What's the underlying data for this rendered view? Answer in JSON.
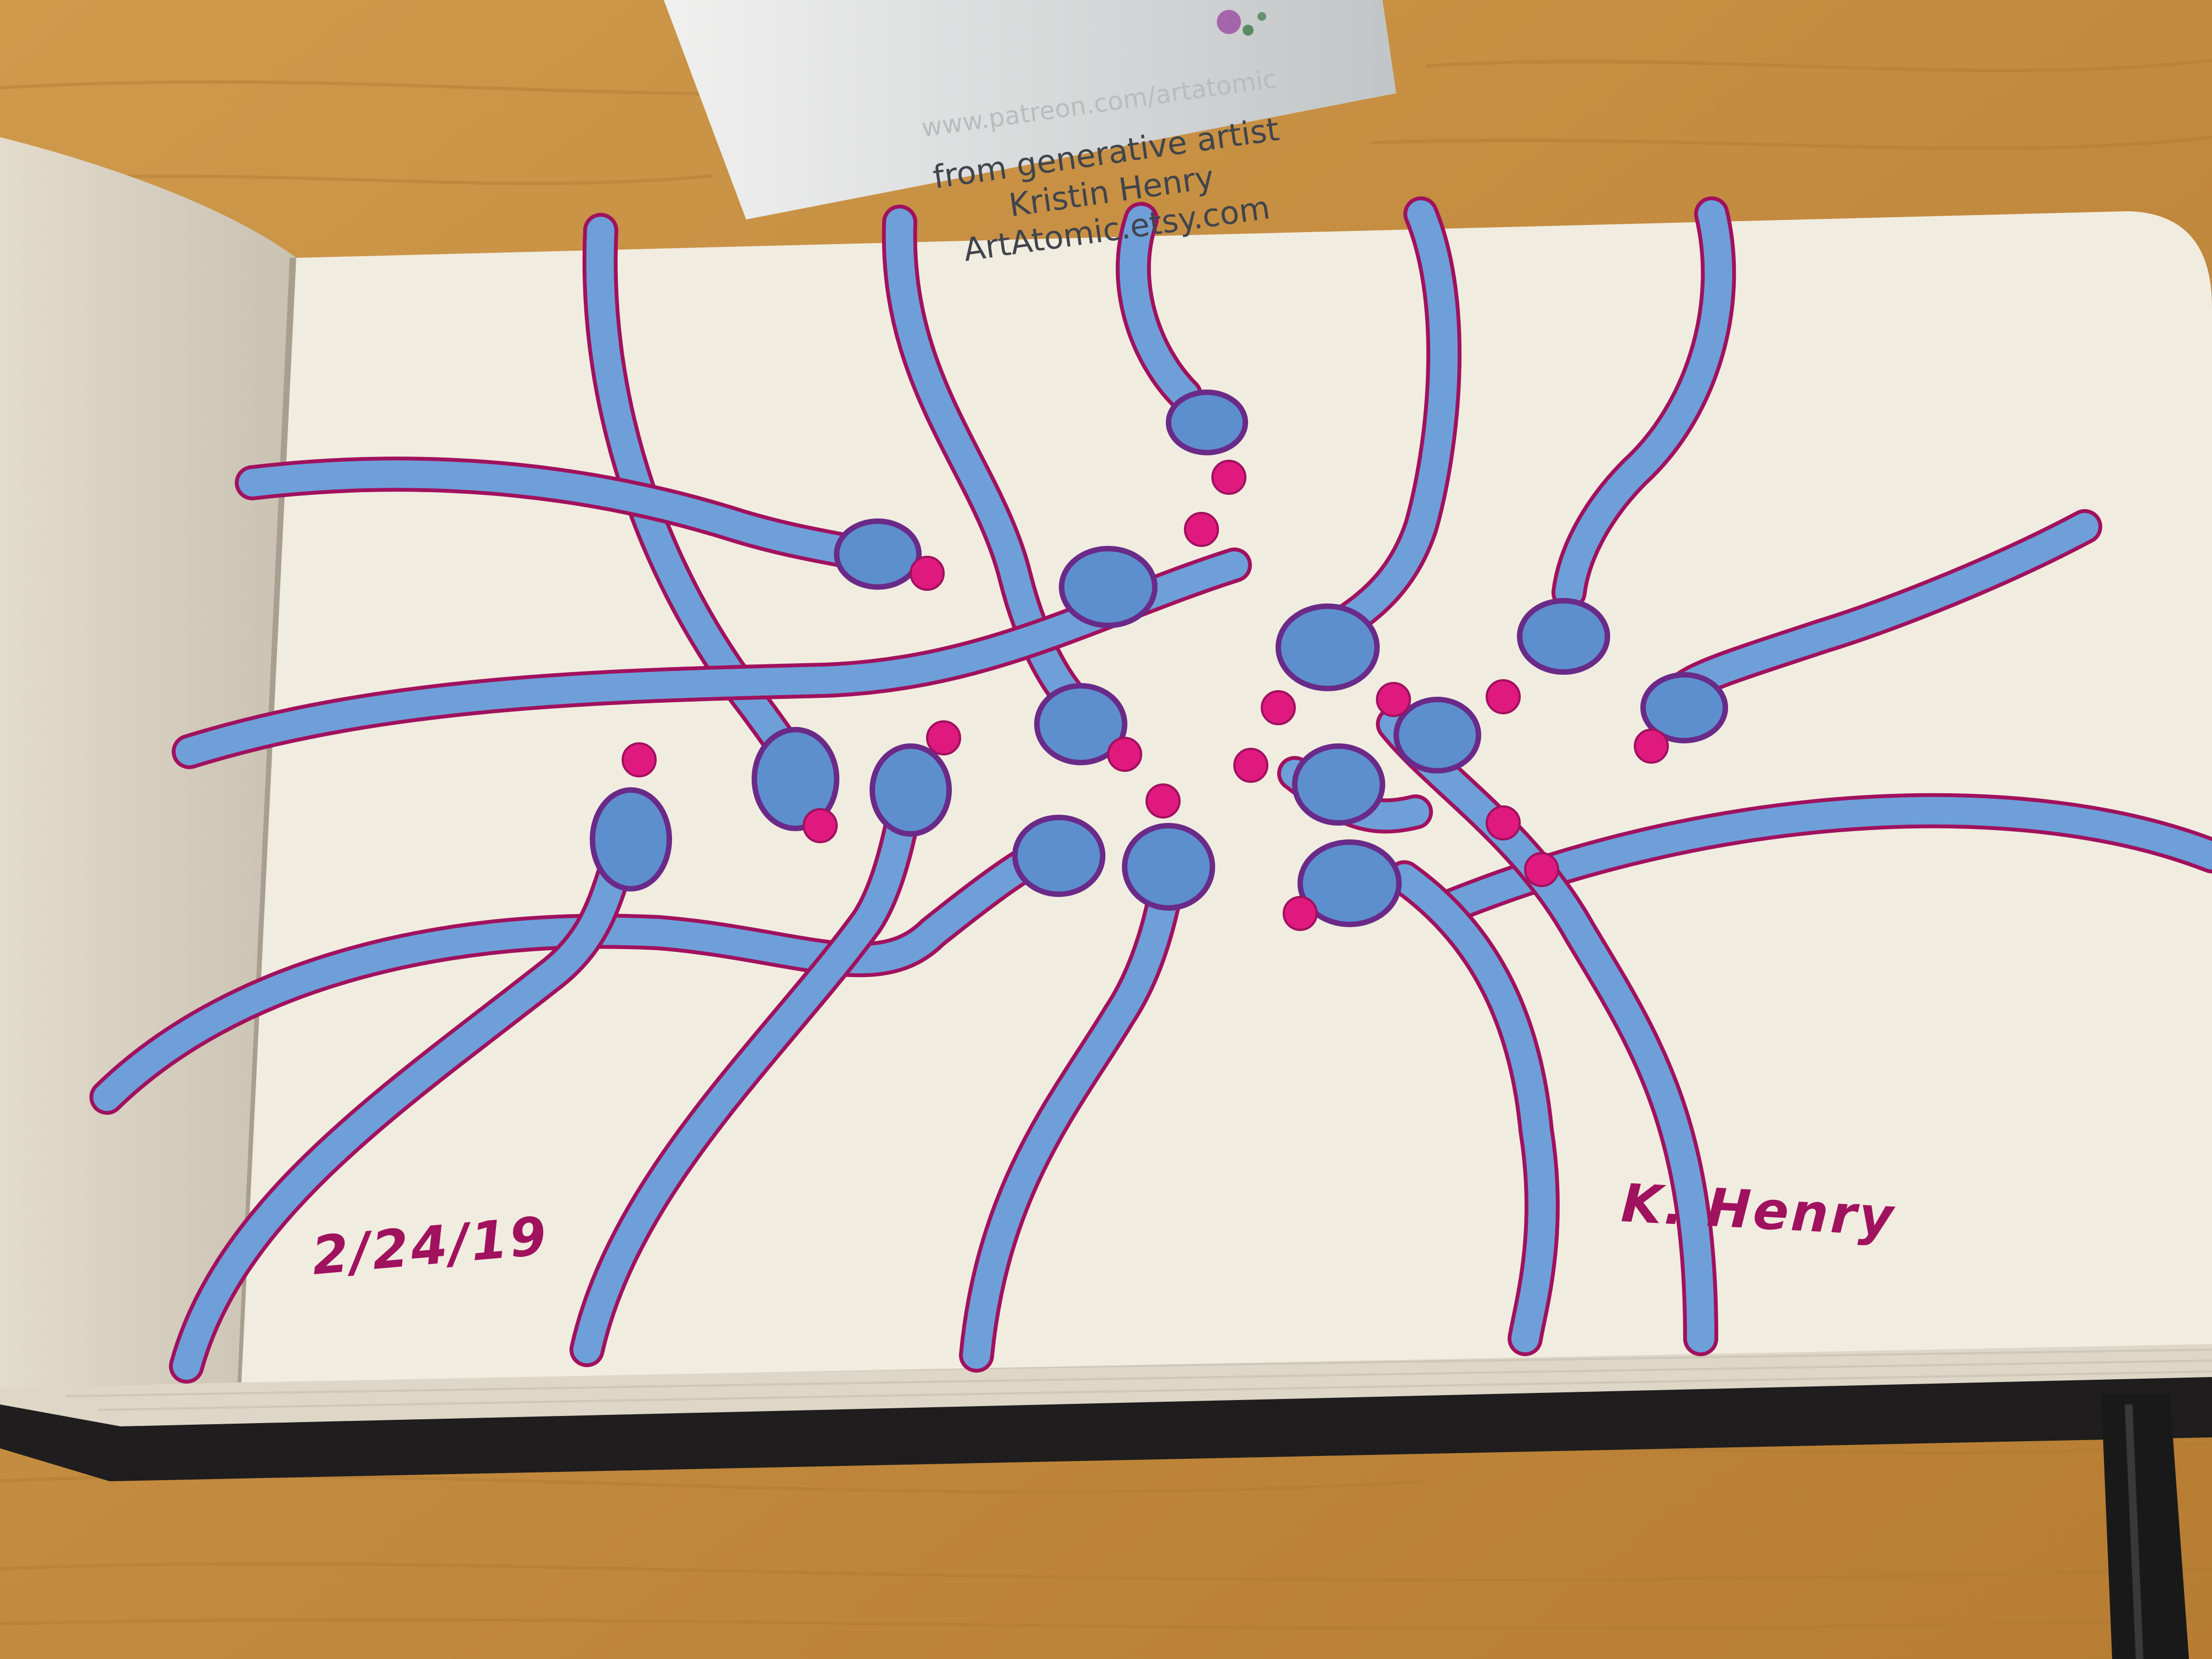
{
  "business_card": {
    "url_faded": "www.patreon.com/artatomic",
    "line1": "from generative artist",
    "line2": "Kristin Henry",
    "line3": "ArtAtomic.etsy.com"
  },
  "sketchbook": {
    "date": "2/24/19",
    "signature": "K. Henry"
  },
  "colors": {
    "table": "#c48f42",
    "paper": "#f1ece0",
    "ink_blue": "#6f9fd8",
    "ink_magenta": "#a0115e",
    "dot_magenta": "#e0197f",
    "cover": "#1c1a1a"
  }
}
